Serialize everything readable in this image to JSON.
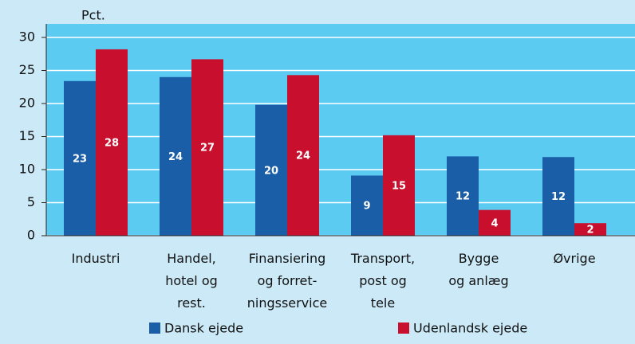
{
  "chart_data": {
    "type": "bar",
    "y_label": "Pct.",
    "categories": [
      [
        "Industri"
      ],
      [
        "Handel,",
        "hotel og",
        "rest."
      ],
      [
        "Finansiering",
        "og forret-",
        "ningsservice"
      ],
      [
        "Transport,",
        "post og",
        "tele"
      ],
      [
        "Bygge",
        "og anlæg"
      ],
      [
        "Øvrige"
      ]
    ],
    "series": [
      {
        "name": "Dansk ejede",
        "color": "#1b5ea8",
        "values": [
          23.4,
          24.0,
          19.8,
          9.1,
          12.0,
          11.9
        ],
        "value_labels": [
          "23",
          "24",
          "20",
          "9",
          "12",
          "12"
        ]
      },
      {
        "name": "Udenlandsk ejede",
        "color": "#c8102e",
        "values": [
          28.2,
          26.7,
          24.3,
          15.2,
          3.9,
          1.9
        ],
        "value_labels": [
          "28",
          "27",
          "24",
          "15",
          "4",
          "2"
        ]
      }
    ],
    "ylim": [
      0,
      30
    ],
    "yticks": [
      0,
      5,
      10,
      15,
      20,
      25,
      30
    ],
    "grid": true,
    "legend": "bottom"
  }
}
